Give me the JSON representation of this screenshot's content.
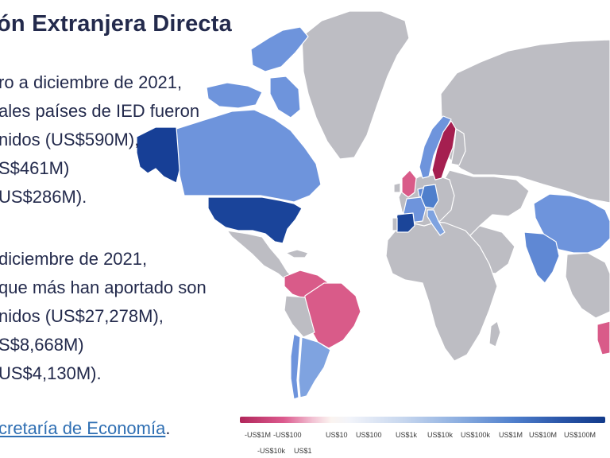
{
  "header": {
    "title": "ón Extranjera Directa"
  },
  "paragraph_1": [
    "ro a diciembre de 2021,",
    "ales países de IED fueron",
    "nidos (US$590M),",
    "S$461M)",
    "US$286M)."
  ],
  "paragraph_2": [
    "diciembre de 2021,",
    "que más han aportado son",
    "nidos (US$27,278M),",
    "S$8,668M)",
    "US$4,130M)."
  ],
  "source": {
    "prefix": "",
    "link": "cretaría de Economía",
    "suffix": "."
  },
  "legend": {
    "top_ticks": [
      "-US$1M",
      "-US$100",
      "US$10",
      "US$100",
      "US$1k",
      "US$10k",
      "US$100k",
      "US$1M",
      "US$10M",
      "US$100M"
    ],
    "bottom_ticks": [
      "-US$10k",
      "US$1"
    ]
  },
  "map": {
    "colors": {
      "no_data": "#bdbdc3",
      "alaska": "#173f96",
      "usa": "#1a449a",
      "canada": "#6e94dc",
      "greenland": "#bdbdc3",
      "norway": "#6e94dc",
      "sweden": "#a51f50",
      "uk": "#d95b89",
      "germany": "#4f7fcc",
      "france": "#6e94dc",
      "spain": "#1b4599",
      "italy": "#7fa3e0",
      "netherlands": "#5f88d4",
      "china": "#6e94dc",
      "india": "#5f88d4",
      "mexico": "#bdbdc3",
      "colombia_venezuela": "#d95b89",
      "brazil": "#d95b89",
      "argentina": "#7fa3e0",
      "chile": "#6e94dc",
      "australia": "#d95b89"
    }
  }
}
